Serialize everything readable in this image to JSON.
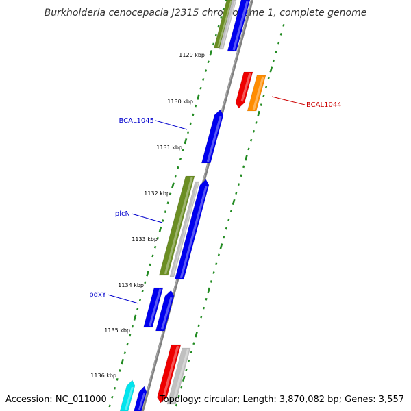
{
  "title": "Burkholderia cenocepacia J2315 chromosome 1, complete genome",
  "footer": {
    "accession": "Accession: NC_011000",
    "topology": "Topology: circular; Length: 3,870,082 bp; Genes: 3,557"
  },
  "colors": {
    "backbone": "#808080",
    "tick_green": "#228b22",
    "label_blue": "#0000cc",
    "label_red": "#cc0000",
    "gene_blue": "#0000ee",
    "gene_olive": "#6b8e23",
    "gene_gray": "#c0c0c0",
    "gene_red": "#ee0000",
    "gene_orange": "#ff8c00",
    "gene_cyan": "#00e5ee"
  },
  "kbp_labels": [
    "1129 kbp",
    "1130 kbp",
    "1131 kbp",
    "1132 kbp",
    "1133 kbp",
    "1134 kbp",
    "1135 kbp",
    "1136 kbp"
  ],
  "gene_labels": [
    {
      "name": "BCAL1045",
      "strand": "forward",
      "color": "blue"
    },
    {
      "name": "plcN",
      "strand": "forward",
      "color": "blue"
    },
    {
      "name": "pdxY",
      "strand": "forward",
      "color": "blue"
    },
    {
      "name": "BCAL1044",
      "strand": "reverse",
      "color": "red"
    }
  ]
}
